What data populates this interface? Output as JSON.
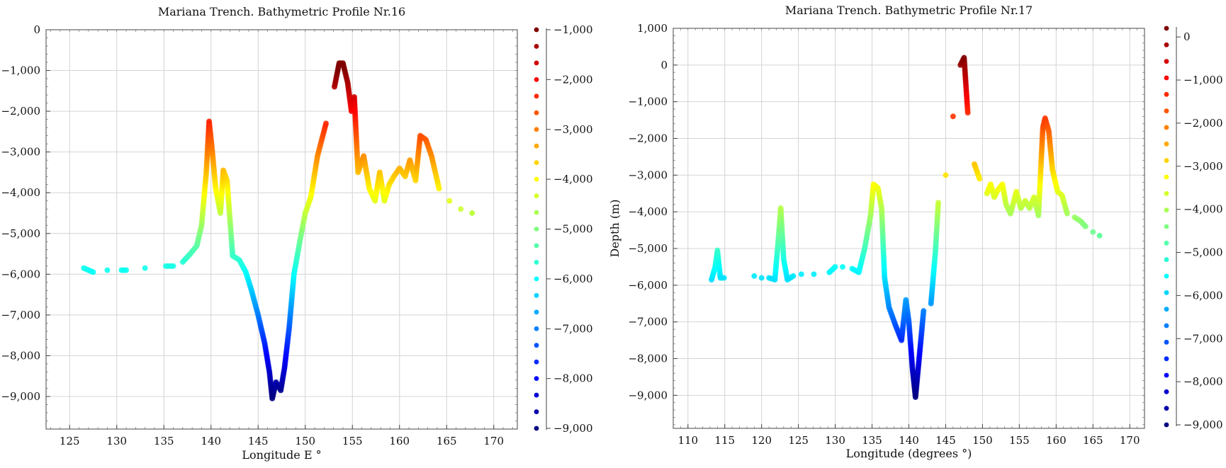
{
  "chart_data": [
    {
      "type": "scatter",
      "title": "Mariana Trench. Bathymetric Profile Nr.16",
      "xlabel": "Longitude E °",
      "ylabel": "",
      "xlim": [
        122.5,
        172.5
      ],
      "ylim": [
        -9800,
        0
      ],
      "xticks": [
        125,
        130,
        135,
        140,
        145,
        150,
        155,
        160,
        165,
        170
      ],
      "yticks": [
        0,
        -1000,
        -2000,
        -3000,
        -4000,
        -5000,
        -6000,
        -7000,
        -8000,
        -9000
      ],
      "grid": true,
      "colormap": "jet",
      "colorbar": {
        "range": [
          -9000,
          -1000
        ],
        "ticks": [
          -1000,
          -2000,
          -3000,
          -4000,
          -5000,
          -6000,
          -7000,
          -8000,
          -9000
        ]
      },
      "points": [
        [
          126.5,
          -5850
        ],
        [
          127,
          -5900
        ],
        [
          127.5,
          -5950
        ],
        [
          129,
          -5900
        ],
        [
          130.5,
          -5900
        ],
        [
          131,
          -5900
        ],
        [
          133,
          -5850
        ],
        [
          135.2,
          -5800
        ],
        [
          136,
          -5800
        ],
        [
          137,
          -5700
        ],
        [
          137.8,
          -5500
        ],
        [
          138.5,
          -5300
        ],
        [
          139,
          -4800
        ],
        [
          139.5,
          -3500
        ],
        [
          139.8,
          -2250
        ],
        [
          140.1,
          -2900
        ],
        [
          140.5,
          -3900
        ],
        [
          141,
          -4500
        ],
        [
          141.3,
          -3450
        ],
        [
          141.7,
          -3700
        ],
        [
          142.3,
          -5550
        ],
        [
          143,
          -5650
        ],
        [
          143.7,
          -5950
        ],
        [
          144.3,
          -6400
        ],
        [
          145,
          -7000
        ],
        [
          145.7,
          -7700
        ],
        [
          146.2,
          -8400
        ],
        [
          146.5,
          -9050
        ],
        [
          146.9,
          -8650
        ],
        [
          147.4,
          -8850
        ],
        [
          147.8,
          -8300
        ],
        [
          148.3,
          -7300
        ],
        [
          148.8,
          -6000
        ],
        [
          149.5,
          -5100
        ],
        [
          150,
          -4500
        ],
        [
          150.6,
          -4100
        ],
        [
          151.3,
          -3100
        ],
        [
          152.2,
          -2300
        ],
        [
          153.1,
          -1400
        ],
        [
          153.6,
          -820
        ],
        [
          154,
          -820
        ],
        [
          154.5,
          -1300
        ],
        [
          154.9,
          -2000
        ],
        [
          155.2,
          -1650
        ],
        [
          155.6,
          -3500
        ],
        [
          156.2,
          -3100
        ],
        [
          156.8,
          -3900
        ],
        [
          157.4,
          -4200
        ],
        [
          157.9,
          -3500
        ],
        [
          158.4,
          -4200
        ],
        [
          158.9,
          -3800
        ],
        [
          159.4,
          -3600
        ],
        [
          160,
          -3400
        ],
        [
          160.6,
          -3600
        ],
        [
          161.1,
          -3200
        ],
        [
          161.7,
          -3700
        ],
        [
          162.2,
          -2600
        ],
        [
          162.8,
          -2700
        ],
        [
          163.4,
          -3100
        ],
        [
          164.2,
          -3900
        ],
        [
          165.3,
          -4200
        ],
        [
          166.5,
          -4400
        ],
        [
          167.7,
          -4500
        ]
      ]
    },
    {
      "type": "scatter",
      "title": "Mariana Trench. Bathymetric Profile Nr.17",
      "xlabel": "Longitude (degrees °)",
      "ylabel": "Depth (m)",
      "xlim": [
        108,
        172
      ],
      "ylim": [
        -9900,
        1000
      ],
      "xticks": [
        110,
        115,
        120,
        125,
        130,
        135,
        140,
        145,
        150,
        155,
        160,
        165,
        170
      ],
      "yticks": [
        1000,
        0,
        -1000,
        -2000,
        -3000,
        -4000,
        -5000,
        -6000,
        -7000,
        -8000,
        -9000
      ],
      "grid": true,
      "colormap": "jet",
      "colorbar": {
        "range": [
          -9000,
          200
        ],
        "ticks": [
          0,
          -1000,
          -2000,
          -3000,
          -4000,
          -5000,
          -6000,
          -7000,
          -8000,
          -9000
        ]
      },
      "points": [
        [
          113.2,
          -5850
        ],
        [
          113.7,
          -5500
        ],
        [
          114,
          -5050
        ],
        [
          114.4,
          -5800
        ],
        [
          114.9,
          -5800
        ],
        [
          119,
          -5750
        ],
        [
          120,
          -5800
        ],
        [
          121,
          -5800
        ],
        [
          121.8,
          -5850
        ],
        [
          122.3,
          -4700
        ],
        [
          122.6,
          -3900
        ],
        [
          123,
          -5300
        ],
        [
          123.5,
          -5850
        ],
        [
          124.3,
          -5750
        ],
        [
          125.4,
          -5700
        ],
        [
          127.1,
          -5700
        ],
        [
          129.2,
          -5650
        ],
        [
          130,
          -5500
        ],
        [
          131,
          -5500
        ],
        [
          132.3,
          -5550
        ],
        [
          133.2,
          -5650
        ],
        [
          134,
          -5000
        ],
        [
          134.8,
          -4100
        ],
        [
          135.2,
          -3250
        ],
        [
          135.8,
          -3350
        ],
        [
          136.3,
          -3900
        ],
        [
          136.7,
          -5800
        ],
        [
          137.3,
          -6600
        ],
        [
          138.2,
          -7100
        ],
        [
          139,
          -7500
        ],
        [
          139.6,
          -6400
        ],
        [
          140,
          -7000
        ],
        [
          140.5,
          -8300
        ],
        [
          140.9,
          -9050
        ],
        [
          141.3,
          -8200
        ],
        [
          142,
          -6700
        ],
        [
          143,
          -6500
        ],
        [
          143.6,
          -5100
        ],
        [
          144,
          -3750
        ],
        [
          145,
          -3000
        ],
        [
          146,
          -1400
        ],
        [
          147,
          0
        ],
        [
          147.5,
          200
        ],
        [
          148,
          -1300
        ],
        [
          148.9,
          -2700
        ],
        [
          149.6,
          -3100
        ],
        [
          150.6,
          -3500
        ],
        [
          151.1,
          -3250
        ],
        [
          151.6,
          -3600
        ],
        [
          152.1,
          -3400
        ],
        [
          152.7,
          -3250
        ],
        [
          153.2,
          -3800
        ],
        [
          153.8,
          -4050
        ],
        [
          154.6,
          -3450
        ],
        [
          155.2,
          -3900
        ],
        [
          155.8,
          -3700
        ],
        [
          156.4,
          -3900
        ],
        [
          157,
          -3600
        ],
        [
          157.6,
          -4100
        ],
        [
          158.2,
          -1700
        ],
        [
          158.5,
          -1450
        ],
        [
          159,
          -1800
        ],
        [
          159.5,
          -2850
        ],
        [
          160.2,
          -3450
        ],
        [
          160.8,
          -3550
        ],
        [
          161.5,
          -4050
        ],
        [
          162.5,
          -4150
        ],
        [
          163.3,
          -4250
        ],
        [
          164,
          -4400
        ],
        [
          165,
          -4550
        ],
        [
          165.9,
          -4650
        ]
      ]
    }
  ]
}
